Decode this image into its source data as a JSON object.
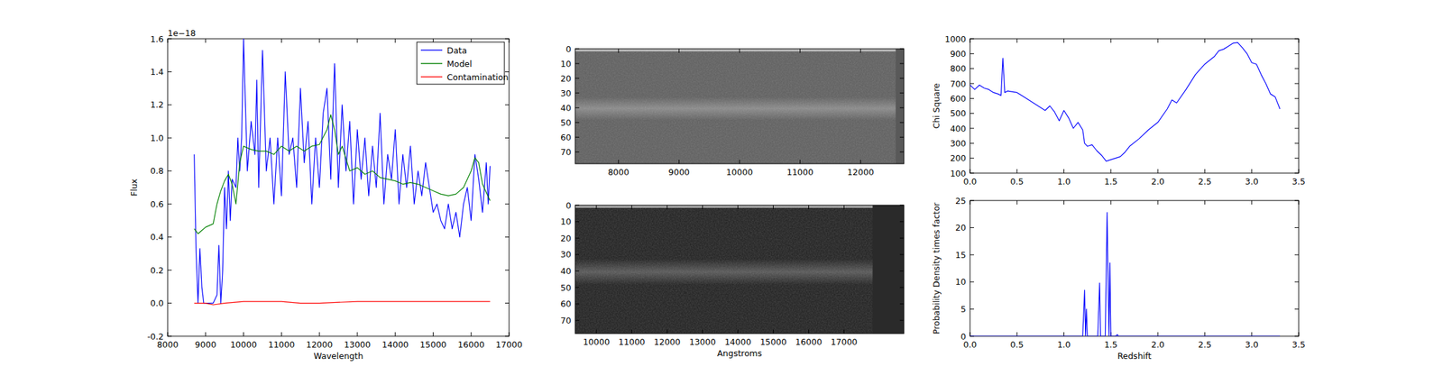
{
  "chart_data": [
    {
      "type": "line",
      "xlabel": "Wavelength",
      "ylabel": "Flux",
      "annotation": "1e−18",
      "xlim": [
        8000,
        17000
      ],
      "ylim": [
        -0.2,
        1.6
      ],
      "xticks": [
        8000,
        9000,
        10000,
        11000,
        12000,
        13000,
        14000,
        15000,
        16000,
        17000
      ],
      "yticks": [
        -0.2,
        {
          "value": 0,
          "label": "0.0"
        },
        0.2,
        0.4,
        0.6,
        0.8,
        {
          "value": 1,
          "label": "1.0"
        },
        1.2,
        1.4,
        1.6
      ],
      "legend": "upper right",
      "series": [
        {
          "name": "Data",
          "color": "#0000ff",
          "x": [
            8700,
            8750,
            8800,
            8850,
            8900,
            8950,
            9000,
            9100,
            9200,
            9300,
            9350,
            9400,
            9450,
            9500,
            9550,
            9600,
            9650,
            9700,
            9800,
            9850,
            9900,
            9950,
            10000,
            10100,
            10200,
            10300,
            10350,
            10400,
            10500,
            10600,
            10700,
            10800,
            10900,
            11000,
            11100,
            11200,
            11300,
            11400,
            11500,
            11600,
            11700,
            11800,
            11900,
            12000,
            12100,
            12200,
            12300,
            12400,
            12500,
            12600,
            12700,
            12800,
            12900,
            13000,
            13100,
            13200,
            13300,
            13400,
            13500,
            13600,
            13700,
            13800,
            13900,
            14000,
            14100,
            14200,
            14300,
            14400,
            14500,
            14600,
            14700,
            14800,
            14900,
            15000,
            15100,
            15200,
            15300,
            15400,
            15500,
            15600,
            15700,
            15800,
            15900,
            16000,
            16100,
            16200,
            16300,
            16400,
            16450,
            16500
          ],
          "values": [
            0.9,
            0.3,
            0.0,
            0.33,
            0.1,
            0.0,
            0.0,
            0.0,
            0.0,
            0.05,
            0.35,
            0.0,
            0.2,
            0.7,
            0.45,
            0.8,
            0.5,
            0.75,
            0.7,
            1.0,
            0.8,
            1.0,
            1.6,
            0.8,
            1.1,
            0.9,
            1.35,
            0.7,
            1.53,
            0.8,
            1.0,
            0.6,
            1.0,
            0.65,
            1.4,
            0.9,
            1.0,
            0.7,
            1.3,
            0.85,
            1.1,
            0.6,
            1.0,
            0.7,
            1.15,
            1.3,
            0.75,
            1.45,
            0.7,
            1.2,
            0.8,
            1.1,
            0.6,
            1.05,
            0.75,
            1.0,
            0.65,
            0.95,
            0.7,
            1.15,
            0.6,
            0.9,
            0.75,
            1.05,
            0.6,
            0.9,
            0.7,
            0.95,
            0.6,
            0.8,
            0.65,
            0.85,
            0.7,
            0.55,
            0.6,
            0.5,
            0.45,
            0.6,
            0.45,
            0.55,
            0.4,
            0.6,
            0.7,
            0.5,
            0.9,
            0.75,
            0.55,
            0.85,
            0.6,
            0.83
          ]
        },
        {
          "name": "Model",
          "color": "#008000",
          "x": [
            8700,
            8800,
            8900,
            9000,
            9200,
            9300,
            9400,
            9500,
            9600,
            9700,
            9800,
            9900,
            10000,
            10200,
            10400,
            10600,
            10800,
            11000,
            11200,
            11400,
            11600,
            11800,
            12000,
            12200,
            12300,
            12400,
            12500,
            12600,
            12800,
            13000,
            13200,
            13400,
            13600,
            13800,
            14000,
            14200,
            14400,
            14600,
            14800,
            15000,
            15200,
            15400,
            15600,
            15800,
            16000,
            16100,
            16200,
            16300,
            16500
          ],
          "values": [
            0.45,
            0.42,
            0.44,
            0.46,
            0.48,
            0.6,
            0.68,
            0.74,
            0.78,
            0.72,
            0.6,
            0.85,
            0.95,
            0.93,
            0.92,
            0.92,
            0.9,
            0.95,
            0.92,
            0.95,
            0.92,
            0.95,
            0.96,
            1.05,
            1.14,
            1.05,
            0.9,
            0.95,
            0.8,
            0.82,
            0.78,
            0.8,
            0.76,
            0.75,
            0.74,
            0.72,
            0.73,
            0.72,
            0.7,
            0.68,
            0.66,
            0.65,
            0.66,
            0.7,
            0.8,
            0.88,
            0.85,
            0.72,
            0.62
          ]
        },
        {
          "name": "Contamination",
          "color": "#ff0000",
          "x": [
            8700,
            9000,
            9200,
            9500,
            10000,
            10500,
            11000,
            11500,
            12000,
            13000,
            14000,
            15000,
            16000,
            16500
          ],
          "values": [
            0.0,
            0.0,
            -0.01,
            0.0,
            0.01,
            0.01,
            0.01,
            0.0,
            0.0,
            0.01,
            0.01,
            0.01,
            0.01,
            0.01
          ]
        }
      ]
    },
    {
      "type": "image",
      "xlim": [
        7285,
        12715
      ],
      "ylim": [
        78,
        0
      ],
      "xticks": [
        8000,
        9000,
        10000,
        11000,
        12000
      ],
      "yticks": [
        0,
        10,
        20,
        30,
        40,
        50,
        60,
        70
      ]
    },
    {
      "type": "image",
      "xlabel": "Angstroms",
      "xlim": [
        9401,
        18691
      ],
      "ylim": [
        78,
        0
      ],
      "xticks": [
        10000,
        11000,
        12000,
        13000,
        14000,
        15000,
        16000,
        17000
      ],
      "yticks": [
        0,
        10,
        20,
        30,
        40,
        50,
        60,
        70
      ]
    },
    {
      "type": "line",
      "ylabel": "Chi Square",
      "xlim": [
        0,
        3.5
      ],
      "ylim": [
        100,
        1000
      ],
      "xticks": [
        {
          "value": 0,
          "label": "0.0"
        },
        0.5,
        {
          "value": 1,
          "label": "1.0"
        },
        1.5,
        {
          "value": 2,
          "label": "2.0"
        },
        2.5,
        {
          "value": 3,
          "label": "3.0"
        },
        3.5
      ],
      "yticks": [
        100,
        200,
        300,
        400,
        500,
        600,
        700,
        800,
        900,
        1000
      ],
      "series": [
        {
          "color": "#0000ff",
          "x": [
            0,
            0.05,
            0.1,
            0.15,
            0.2,
            0.25,
            0.3,
            0.33,
            0.35,
            0.37,
            0.4,
            0.5,
            0.6,
            0.7,
            0.75,
            0.8,
            0.85,
            0.9,
            0.95,
            1.0,
            1.05,
            1.1,
            1.15,
            1.2,
            1.22,
            1.25,
            1.3,
            1.35,
            1.4,
            1.45,
            1.5,
            1.55,
            1.6,
            1.65,
            1.7,
            1.8,
            1.9,
            2.0,
            2.1,
            2.15,
            2.2,
            2.3,
            2.4,
            2.5,
            2.6,
            2.65,
            2.7,
            2.75,
            2.8,
            2.85,
            2.9,
            2.95,
            3.0,
            3.05,
            3.1,
            3.15,
            3.2,
            3.25,
            3.3
          ],
          "values": [
            690,
            660,
            690,
            670,
            660,
            640,
            630,
            620,
            870,
            640,
            650,
            640,
            600,
            560,
            540,
            520,
            550,
            510,
            450,
            520,
            470,
            400,
            440,
            390,
            300,
            280,
            290,
            250,
            220,
            180,
            190,
            200,
            210,
            240,
            280,
            330,
            390,
            440,
            530,
            590,
            570,
            660,
            760,
            830,
            880,
            920,
            930,
            950,
            970,
            975,
            940,
            900,
            840,
            830,
            760,
            700,
            630,
            610,
            530
          ]
        }
      ]
    },
    {
      "type": "line",
      "xlabel": "Redshift",
      "ylabel": "Probability Density times factor",
      "xlim": [
        0,
        3.5
      ],
      "ylim": [
        0,
        25
      ],
      "xticks": [
        {
          "value": 0,
          "label": "0.0"
        },
        0.5,
        {
          "value": 1,
          "label": "1.0"
        },
        1.5,
        {
          "value": 2,
          "label": "2.0"
        },
        2.5,
        {
          "value": 3,
          "label": "3.0"
        },
        3.5
      ],
      "yticks": [
        0,
        5,
        10,
        15,
        20,
        25
      ],
      "series": [
        {
          "color": "#0000ff",
          "x": [
            0,
            1.2,
            1.22,
            1.23,
            1.24,
            1.25,
            1.36,
            1.38,
            1.39,
            1.44,
            1.46,
            1.48,
            1.49,
            1.5,
            1.55,
            1.57,
            1.58,
            3.3
          ],
          "values": [
            0,
            0,
            8.5,
            0,
            5,
            0,
            0,
            9.8,
            0,
            0,
            22.8,
            0,
            13.5,
            0,
            0,
            0.3,
            0,
            0
          ]
        }
      ]
    }
  ]
}
